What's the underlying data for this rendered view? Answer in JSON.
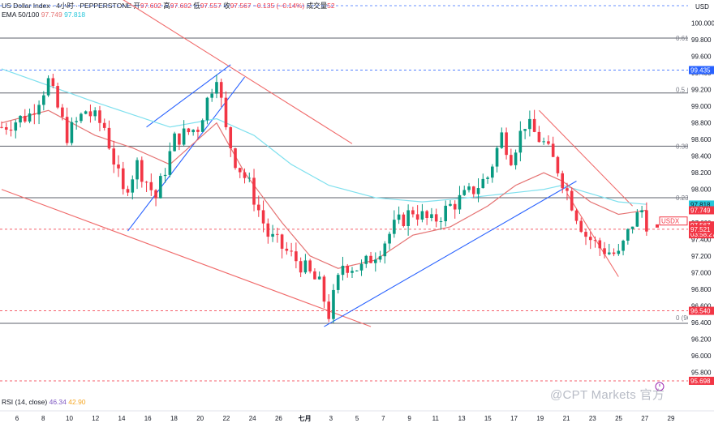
{
  "header": {
    "symbol": "US Dollar Index",
    "interval": "4小时",
    "exchange": "PEPPERSTONE",
    "open_label": "开",
    "open": "97.602",
    "high_label": "高",
    "high": "97.602",
    "low_label": "低",
    "low": "97.557",
    "close_label": "收",
    "close": "97.567",
    "change": "−0.135 (−0.14%)",
    "volume_label": "成交量",
    "volume": "52"
  },
  "ema": {
    "label": "EMA 50/100",
    "ema50": "97.749",
    "ema100": "97.818"
  },
  "rsi": {
    "label": "RSI (14, close)",
    "value": "46.34",
    "ma": "42.90"
  },
  "watermark": "@CPT Markets 官方",
  "colors": {
    "up": "#089981",
    "down": "#f23645",
    "ema50": "#e57373",
    "ema100": "#7fe0ee",
    "trend_blue": "#2962ff",
    "channel_red": "#f06a6a"
  },
  "chart_data": {
    "type": "candlestick",
    "currency": "USD",
    "y_axis": {
      "min": 95.6,
      "max": 100.2,
      "ticks": [
        "100.000",
        "99.800",
        "99.600",
        "99.400",
        "99.200",
        "99.000",
        "98.800",
        "98.600",
        "98.400",
        "98.200",
        "98.000",
        "97.800",
        "97.600",
        "97.400",
        "97.200",
        "97.000",
        "96.800",
        "96.600",
        "96.400",
        "96.200",
        "96.000",
        "95.800"
      ]
    },
    "x_axis": {
      "ticks": [
        "6",
        "8",
        "10",
        "12",
        "14",
        "16",
        "18",
        "20",
        "22",
        "24",
        "26",
        "七月",
        "3",
        "5",
        "7",
        "9",
        "11",
        "13",
        "15",
        "17",
        "19",
        "21",
        "23",
        "25",
        "27",
        "29"
      ]
    },
    "price_tags": [
      {
        "label": "99.435",
        "value": 99.435,
        "style": "blue"
      },
      {
        "label": "97.818",
        "value": 97.818,
        "style": "ema100"
      },
      {
        "label": "97.749",
        "value": 97.749,
        "style": "ema50"
      },
      {
        "label": "USDX",
        "value": 97.62,
        "style": "usdx"
      },
      {
        "label": "97.567",
        "value": 97.567,
        "style": "red"
      },
      {
        "label": "03:58:27",
        "value": 97.46,
        "style": "timer"
      },
      {
        "label": "97.521",
        "value": 97.521,
        "style": "redlight"
      },
      {
        "label": "96.540",
        "value": 96.54,
        "style": "red"
      },
      {
        "label": "95.698",
        "value": 95.698,
        "style": "red"
      }
    ],
    "fib_labels": [
      {
        "label": "0.618",
        "value": 99.82
      },
      {
        "label": "0.5 (",
        "value": 99.2
      },
      {
        "label": "0.382",
        "value": 98.52
      },
      {
        "label": "0.236",
        "value": 97.9
      },
      {
        "label": "0 (96",
        "value": 96.46
      }
    ],
    "horizontal_levels": [
      99.82,
      99.16,
      98.52,
      97.9,
      96.39
    ],
    "dashed_levels": [
      {
        "value": 99.435,
        "color": "blue"
      },
      {
        "value": 97.521,
        "color": "red"
      },
      {
        "value": 96.54,
        "color": "red"
      },
      {
        "value": 95.698,
        "color": "red"
      }
    ],
    "anchors": [
      [
        0,
        98.75
      ],
      [
        6,
        98.9
      ],
      [
        10,
        99.3
      ],
      [
        14,
        98.65
      ],
      [
        18,
        98.95
      ],
      [
        22,
        98.75
      ],
      [
        26,
        97.95
      ],
      [
        29,
        98.3
      ],
      [
        33,
        97.9
      ],
      [
        37,
        98.6
      ],
      [
        42,
        98.75
      ],
      [
        46,
        99.4
      ],
      [
        48,
        98.7
      ],
      [
        50,
        98.35
      ],
      [
        53,
        98.05
      ],
      [
        57,
        97.45
      ],
      [
        61,
        97.25
      ],
      [
        64,
        97.1
      ],
      [
        68,
        96.85
      ],
      [
        70,
        96.5
      ],
      [
        73,
        97.1
      ],
      [
        77,
        97.05
      ],
      [
        81,
        97.3
      ],
      [
        84,
        97.55
      ],
      [
        88,
        97.75
      ],
      [
        92,
        97.6
      ],
      [
        96,
        97.8
      ],
      [
        100,
        97.95
      ],
      [
        104,
        98.15
      ],
      [
        107,
        98.65
      ],
      [
        109,
        98.4
      ],
      [
        112,
        98.8
      ],
      [
        116,
        98.55
      ],
      [
        119,
        98.25
      ],
      [
        123,
        97.7
      ],
      [
        125,
        97.45
      ],
      [
        128,
        97.3
      ],
      [
        132,
        97.2
      ],
      [
        135,
        97.6
      ],
      [
        137,
        97.75
      ],
      [
        138,
        97.6
      ]
    ],
    "ema50_path": [
      [
        0,
        98.8
      ],
      [
        10,
        98.95
      ],
      [
        20,
        98.65
      ],
      [
        28,
        98.5
      ],
      [
        36,
        98.3
      ],
      [
        42,
        98.6
      ],
      [
        46,
        98.8
      ],
      [
        52,
        98.2
      ],
      [
        60,
        97.6
      ],
      [
        66,
        97.2
      ],
      [
        72,
        97.05
      ],
      [
        80,
        97.15
      ],
      [
        88,
        97.45
      ],
      [
        96,
        97.55
      ],
      [
        104,
        97.8
      ],
      [
        110,
        98.05
      ],
      [
        116,
        98.2
      ],
      [
        120,
        98.1
      ],
      [
        126,
        97.85
      ],
      [
        132,
        97.7
      ],
      [
        138,
        97.75
      ]
    ],
    "ema100_path": [
      [
        0,
        99.45
      ],
      [
        10,
        99.25
      ],
      [
        20,
        99.05
      ],
      [
        28,
        98.9
      ],
      [
        36,
        98.75
      ],
      [
        46,
        98.85
      ],
      [
        54,
        98.65
      ],
      [
        62,
        98.3
      ],
      [
        70,
        98.05
      ],
      [
        80,
        97.9
      ],
      [
        90,
        97.85
      ],
      [
        100,
        97.9
      ],
      [
        108,
        97.95
      ],
      [
        116,
        98.0
      ],
      [
        120,
        98.05
      ],
      [
        126,
        97.95
      ],
      [
        132,
        97.85
      ],
      [
        138,
        97.82
      ]
    ]
  }
}
